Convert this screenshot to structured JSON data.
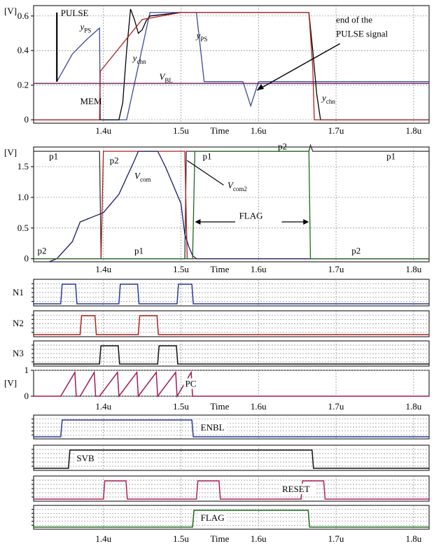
{
  "chart_data": [
    {
      "type": "line",
      "unit_label": "[V]",
      "xlim": [
        1.31,
        1.82
      ],
      "ylim": [
        -0.02,
        0.66
      ],
      "xticks": [
        1.4,
        1.5,
        1.6,
        1.7,
        1.8
      ],
      "xtick_labels": [
        "1.4u",
        "1.5u",
        "1.6u",
        "1.7u",
        "1.8u"
      ],
      "yticks": [
        0,
        0.2,
        0.4,
        0.6
      ],
      "ytick_labels": [
        "0",
        "0.2",
        "0.4",
        "0.6"
      ],
      "xlabel": "Time",
      "series": [
        {
          "name": "yPS",
          "color": "#3a4a9a",
          "x": [
            1.34,
            1.36,
            1.38,
            1.395,
            1.396,
            1.43,
            1.46,
            1.52,
            1.53,
            1.58,
            1.59,
            1.6,
            1.67,
            1.68,
            1.82
          ],
          "y": [
            0.22,
            0.38,
            0.47,
            0.53,
            0.0,
            0.0,
            0.62,
            0.62,
            0.22,
            0.22,
            0.08,
            0.22,
            0.22,
            0.22,
            0.22
          ]
        },
        {
          "name": "ychn",
          "color": "#000000",
          "x": [
            1.31,
            1.42,
            1.425,
            1.43,
            1.435,
            1.44,
            1.445,
            1.45,
            1.455,
            1.46,
            1.5,
            1.665,
            1.67,
            1.675,
            1.68,
            1.82
          ],
          "y": [
            0.0,
            0.0,
            0.1,
            0.4,
            0.64,
            0.58,
            0.5,
            0.52,
            0.57,
            0.6,
            0.62,
            0.62,
            0.4,
            0.15,
            0.0,
            0.0
          ]
        },
        {
          "name": "MEM",
          "color": "#b02020",
          "x": [
            1.31,
            1.395,
            1.396,
            1.45,
            1.5,
            1.55,
            1.665,
            1.67,
            1.672,
            1.82
          ],
          "y": [
            0.0,
            0.0,
            0.28,
            0.58,
            0.62,
            0.62,
            0.62,
            0.3,
            0.0,
            0.0
          ]
        },
        {
          "name": "VBL",
          "color": "#6a1a6a",
          "x": [
            1.31,
            1.82
          ],
          "y": [
            0.21,
            0.21
          ]
        }
      ],
      "annotations": [
        {
          "text": "PULSE",
          "x": 1.345,
          "y": 0.6
        },
        {
          "text": "y",
          "sub": "PS",
          "x": 1.37,
          "y": 0.52
        },
        {
          "text": "y",
          "sub": "PS",
          "x": 1.52,
          "y": 0.47
        },
        {
          "text": "y",
          "sub": "chn",
          "x": 1.438,
          "y": 0.34
        },
        {
          "text": "V",
          "sub": "BL",
          "x": 1.472,
          "y": 0.23
        },
        {
          "text": "MEM",
          "x": 1.37,
          "y": 0.09
        },
        {
          "text": "end of the",
          "x": 1.7,
          "y": 0.56
        },
        {
          "text": "PULSE signal",
          "x": 1.7,
          "y": 0.48
        },
        {
          "text": "y",
          "sub": "chn",
          "x": 1.682,
          "y": 0.11
        }
      ]
    },
    {
      "type": "line",
      "unit_label": "[V]",
      "xlim": [
        1.31,
        1.82
      ],
      "ylim": [
        -0.05,
        1.82
      ],
      "xticks": [
        1.4,
        1.5,
        1.6,
        1.7,
        1.8
      ],
      "xtick_labels": [
        "1.4u",
        "1.5u",
        "1.6u",
        "1.7u",
        "1.8u"
      ],
      "yticks": [
        0,
        0.5,
        1.0,
        1.5
      ],
      "ytick_labels": [
        "0",
        "0.5",
        "1.0",
        "1.5"
      ],
      "xlabel": "Time",
      "series": [
        {
          "name": "p1",
          "color": "#333333",
          "x": [
            1.31,
            1.395,
            1.397,
            1.4,
            1.505,
            1.507,
            1.66,
            1.665,
            1.667,
            1.67,
            1.82
          ],
          "y": [
            1.75,
            1.75,
            0.0,
            0.0,
            0.0,
            1.75,
            1.75,
            1.75,
            1.85,
            1.75,
            1.75
          ]
        },
        {
          "name": "p2",
          "color": "#b02020",
          "x": [
            1.31,
            1.397,
            1.4,
            1.505,
            1.508,
            1.82
          ],
          "y": [
            0.0,
            0.0,
            1.75,
            1.75,
            0.0,
            0.0
          ]
        },
        {
          "name": "Vcom",
          "color": "#1a1a6a",
          "x": [
            1.33,
            1.34,
            1.36,
            1.37,
            1.39,
            1.4,
            1.41,
            1.42,
            1.44,
            1.445,
            1.47,
            1.48,
            1.5,
            1.505,
            1.51,
            1.515,
            1.52,
            1.82
          ],
          "y": [
            -0.05,
            0.0,
            0.28,
            0.6,
            0.7,
            0.75,
            0.9,
            1.05,
            1.6,
            1.75,
            1.75,
            1.5,
            0.9,
            0.4,
            0.2,
            0.05,
            0.0,
            0.0
          ]
        },
        {
          "name": "FLAG",
          "color": "#1a6a1a",
          "x": [
            1.31,
            1.515,
            1.518,
            1.665,
            1.667,
            1.82
          ],
          "y": [
            0.0,
            0.0,
            1.75,
            1.75,
            0.0,
            0.0
          ]
        }
      ],
      "annotations": [
        {
          "text": "p1",
          "x": 1.33,
          "y": 1.62
        },
        {
          "text": "p2",
          "x": 1.408,
          "y": 1.55
        },
        {
          "text": "V",
          "sub": "com",
          "x": 1.44,
          "y": 1.3
        },
        {
          "text": "V",
          "sub": "com2",
          "x": 1.56,
          "y": 1.15
        },
        {
          "text": "p1",
          "x": 1.528,
          "y": 1.62
        },
        {
          "text": "p2",
          "x": 1.625,
          "y": 1.78
        },
        {
          "text": "p1",
          "x": 1.765,
          "y": 1.62
        },
        {
          "text": "FLAG",
          "x": 1.575,
          "y": 0.65
        },
        {
          "text": "p2",
          "x": 1.315,
          "y": 0.08
        },
        {
          "text": "p1",
          "x": 1.44,
          "y": 0.08
        },
        {
          "text": "p2",
          "x": 1.72,
          "y": 0.08
        }
      ]
    },
    {
      "type": "line",
      "name": "N1",
      "color": "#2a3a9a",
      "xlim": [
        1.31,
        1.82
      ],
      "ylim": [
        0,
        1
      ],
      "pulses": [
        [
          1.345,
          1.365
        ],
        [
          1.42,
          1.445
        ],
        [
          1.495,
          1.515
        ]
      ]
    },
    {
      "type": "line",
      "name": "N2",
      "color": "#b02020",
      "xlim": [
        1.31,
        1.82
      ],
      "ylim": [
        0,
        1
      ],
      "pulses": [
        [
          1.37,
          1.39
        ],
        [
          1.445,
          1.47
        ]
      ]
    },
    {
      "type": "line",
      "name": "N3",
      "color": "#111111",
      "xlim": [
        1.31,
        1.82
      ],
      "ylim": [
        0,
        1
      ],
      "pulses": [
        [
          1.395,
          1.42
        ],
        [
          1.47,
          1.495
        ]
      ]
    },
    {
      "type": "line",
      "name": "PC",
      "unit_label": "[V]",
      "color": "#a01a5a",
      "xlim": [
        1.31,
        1.82
      ],
      "ylim": [
        0,
        1
      ],
      "yticks": [
        0,
        1
      ],
      "ytick_labels": [
        "0",
        "1"
      ],
      "xticks": [
        1.4,
        1.5,
        1.6,
        1.7,
        1.8
      ],
      "xtick_labels": [
        "1.4u",
        "1.5u",
        "1.6u",
        "1.7u",
        "1.8u"
      ],
      "xlabel": "Time",
      "ramps": [
        [
          1.345,
          1.365
        ],
        [
          1.37,
          1.39
        ],
        [
          1.395,
          1.42
        ],
        [
          1.42,
          1.445
        ],
        [
          1.445,
          1.47
        ],
        [
          1.47,
          1.495
        ],
        [
          1.495,
          1.515
        ]
      ]
    },
    {
      "type": "line",
      "name": "ENBL",
      "color": "#2a3a9a",
      "xlim": [
        1.31,
        1.82
      ],
      "ylim": [
        0,
        1
      ],
      "pulses": [
        [
          1.345,
          1.515
        ]
      ]
    },
    {
      "type": "line",
      "name": "SVB",
      "color": "#111111",
      "xlim": [
        1.31,
        1.82
      ],
      "ylim": [
        0,
        1
      ],
      "pulses": [
        [
          1.355,
          1.67
        ]
      ]
    },
    {
      "type": "line",
      "name": "RESET",
      "color": "#b02060",
      "xlim": [
        1.31,
        1.82
      ],
      "ylim": [
        0,
        1
      ],
      "pulses": [
        [
          1.4,
          1.43
        ],
        [
          1.52,
          1.55
        ],
        [
          1.655,
          1.685
        ]
      ]
    },
    {
      "type": "line",
      "name": "FLAG",
      "color": "#1a6a1a",
      "xlim": [
        1.31,
        1.82
      ],
      "ylim": [
        0,
        1
      ],
      "xticks": [
        1.4,
        1.5,
        1.6,
        1.7,
        1.8
      ],
      "xtick_labels": [
        "1.4u",
        "1.5u",
        "1.6u",
        "1.7u",
        "1.8u"
      ],
      "xlabel": "Time",
      "pulses": [
        [
          1.515,
          1.665
        ]
      ]
    }
  ]
}
